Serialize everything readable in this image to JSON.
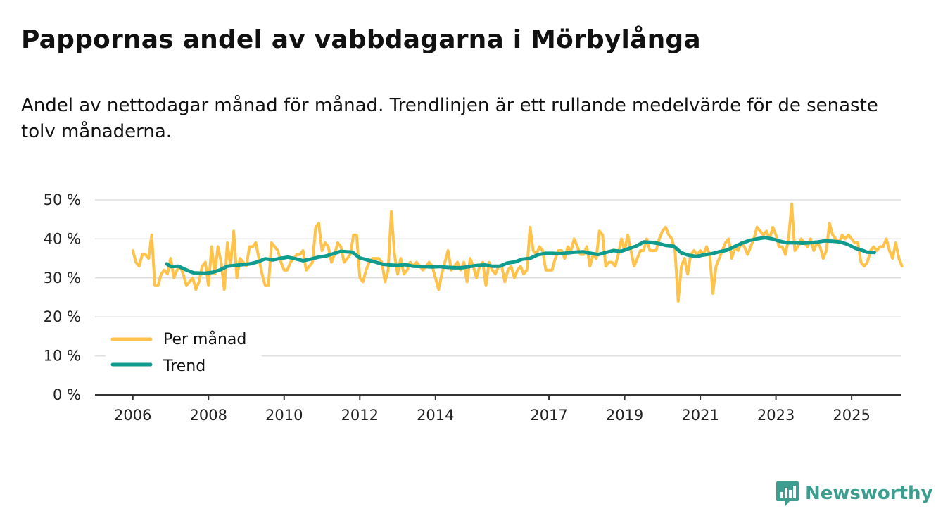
{
  "header": {
    "title": "Pappornas andel av vabbdagarna i Mörbylånga",
    "subtitle": "Andel av nettodagar månad för månad. Trendlinjen är ett rullande medelvärde för de senaste tolv månaderna."
  },
  "brand": {
    "name": "Newsworthy",
    "icon": "newsworthy-logo-icon"
  },
  "colors": {
    "monthly": "#ffc24a",
    "trend": "#0f9b8e",
    "grid": "#dddddd",
    "axis": "#333333"
  },
  "chart_data": {
    "type": "line",
    "title": "Pappornas andel av vabbdagarna i Mörbylånga",
    "xlabel": "",
    "ylabel": "",
    "unit": "%",
    "ylim": [
      0,
      50
    ],
    "yticks": [
      0,
      10,
      20,
      30,
      40,
      50
    ],
    "ytick_labels": [
      "0 %",
      "10 %",
      "20 %",
      "30 %",
      "40 %",
      "50 %"
    ],
    "xticks": [
      2006,
      2008,
      2010,
      2012,
      2014,
      2017,
      2019,
      2021,
      2023,
      2025
    ],
    "xtick_labels": [
      "2006",
      "2008",
      "2010",
      "2012",
      "2014",
      "2017",
      "2019",
      "2021",
      "2023",
      "2025"
    ],
    "xlim": [
      2005.0,
      2026.3
    ],
    "legend": {
      "placement": "bottom-left",
      "entries": [
        "Per månad",
        "Trend"
      ]
    },
    "series": [
      {
        "name": "Per månad",
        "x_start": 2006.0,
        "step": 0.08333,
        "values": [
          37,
          34,
          33,
          36,
          36,
          35,
          41,
          28,
          28,
          31,
          32,
          31,
          35,
          30,
          32,
          33,
          31,
          28,
          29,
          30,
          27,
          29,
          33,
          34,
          28,
          38,
          31,
          38,
          34,
          27,
          39,
          33,
          42,
          30,
          35,
          34,
          33,
          38,
          38,
          39,
          35,
          31,
          28,
          28,
          39,
          38,
          37,
          34,
          32,
          32,
          34,
          35,
          36,
          36,
          37,
          32,
          33,
          34,
          43,
          44,
          37,
          39,
          38,
          34,
          36,
          39,
          38,
          34,
          35,
          36,
          41,
          41,
          30,
          29,
          32,
          34,
          35,
          35,
          35,
          34,
          29,
          32,
          47,
          36,
          31,
          35,
          31,
          32,
          34,
          33,
          34,
          33,
          32,
          33,
          34,
          33,
          30,
          27,
          31,
          34,
          37,
          32,
          33,
          34,
          32,
          34,
          29,
          35,
          33,
          30,
          33,
          34,
          28,
          34,
          32,
          31,
          33,
          33,
          29,
          32,
          33,
          30,
          32,
          33,
          31,
          32,
          43,
          37,
          36,
          38,
          37,
          32,
          32,
          32,
          35,
          37,
          37,
          35,
          38,
          37,
          40,
          38,
          36,
          36,
          38,
          33,
          36,
          35,
          42,
          41,
          33,
          34,
          34,
          33,
          36,
          40,
          37,
          41,
          37,
          33,
          35,
          37,
          37,
          40,
          37,
          37,
          37,
          40,
          42,
          43,
          41,
          40,
          37,
          24,
          33,
          35,
          31,
          36,
          37,
          36,
          37,
          36,
          38,
          36,
          26,
          33,
          35,
          37,
          39,
          40,
          35,
          38,
          37,
          39,
          38,
          36,
          38,
          40,
          43,
          42,
          41,
          42,
          40,
          43,
          41,
          38,
          38,
          36,
          40,
          49,
          37,
          38,
          40,
          39,
          38,
          40,
          37,
          39,
          38,
          35,
          37,
          44,
          41,
          40,
          39,
          41,
          40,
          41,
          40,
          39,
          39,
          34,
          33,
          34,
          37,
          38,
          37,
          38,
          38,
          40,
          37,
          35,
          39,
          35,
          33
        ]
      },
      {
        "name": "Trend",
        "points": [
          [
            2006.9,
            33.6
          ],
          [
            2007.0,
            32.9
          ],
          [
            2007.2,
            33.0
          ],
          [
            2007.4,
            32.1
          ],
          [
            2007.6,
            31.3
          ],
          [
            2007.9,
            31.2
          ],
          [
            2008.1,
            31.4
          ],
          [
            2008.3,
            32.0
          ],
          [
            2008.5,
            33.0
          ],
          [
            2008.7,
            33.2
          ],
          [
            2008.9,
            33.4
          ],
          [
            2009.1,
            33.6
          ],
          [
            2009.3,
            34.1
          ],
          [
            2009.5,
            34.9
          ],
          [
            2009.7,
            34.6
          ],
          [
            2009.9,
            35.0
          ],
          [
            2010.1,
            35.3
          ],
          [
            2010.3,
            34.9
          ],
          [
            2010.5,
            34.4
          ],
          [
            2010.7,
            34.8
          ],
          [
            2010.9,
            35.3
          ],
          [
            2011.1,
            35.6
          ],
          [
            2011.3,
            36.2
          ],
          [
            2011.5,
            36.8
          ],
          [
            2011.8,
            36.6
          ],
          [
            2012.0,
            35.1
          ],
          [
            2012.2,
            34.6
          ],
          [
            2012.4,
            34.1
          ],
          [
            2012.6,
            33.5
          ],
          [
            2012.8,
            33.3
          ],
          [
            2013.0,
            33.2
          ],
          [
            2013.2,
            33.4
          ],
          [
            2013.4,
            33.0
          ],
          [
            2013.7,
            32.9
          ],
          [
            2013.9,
            32.8
          ],
          [
            2014.1,
            32.9
          ],
          [
            2014.3,
            32.7
          ],
          [
            2014.5,
            32.6
          ],
          [
            2014.7,
            32.6
          ],
          [
            2014.9,
            32.9
          ],
          [
            2015.1,
            33.2
          ],
          [
            2015.3,
            33.3
          ],
          [
            2015.5,
            33.0
          ],
          [
            2015.7,
            33.0
          ],
          [
            2015.9,
            33.8
          ],
          [
            2016.1,
            34.1
          ],
          [
            2016.3,
            34.8
          ],
          [
            2016.5,
            35.0
          ],
          [
            2016.7,
            35.9
          ],
          [
            2016.9,
            36.3
          ],
          [
            2017.1,
            36.3
          ],
          [
            2017.3,
            36.2
          ],
          [
            2017.5,
            36.4
          ],
          [
            2017.7,
            36.6
          ],
          [
            2017.9,
            36.7
          ],
          [
            2018.1,
            36.3
          ],
          [
            2018.3,
            36.0
          ],
          [
            2018.5,
            36.5
          ],
          [
            2018.7,
            37.0
          ],
          [
            2018.9,
            36.8
          ],
          [
            2019.1,
            37.5
          ],
          [
            2019.3,
            38.1
          ],
          [
            2019.5,
            39.2
          ],
          [
            2019.7,
            39.1
          ],
          [
            2019.9,
            38.8
          ],
          [
            2020.1,
            38.3
          ],
          [
            2020.3,
            38.1
          ],
          [
            2020.5,
            36.4
          ],
          [
            2020.7,
            35.8
          ],
          [
            2020.9,
            35.5
          ],
          [
            2021.1,
            35.9
          ],
          [
            2021.3,
            36.2
          ],
          [
            2021.5,
            36.7
          ],
          [
            2021.7,
            37.1
          ],
          [
            2021.9,
            38.0
          ],
          [
            2022.1,
            38.9
          ],
          [
            2022.3,
            39.6
          ],
          [
            2022.5,
            40.0
          ],
          [
            2022.7,
            40.3
          ],
          [
            2022.9,
            40.0
          ],
          [
            2023.1,
            39.4
          ],
          [
            2023.3,
            39.0
          ],
          [
            2023.5,
            39.0
          ],
          [
            2023.7,
            38.9
          ],
          [
            2023.9,
            39.0
          ],
          [
            2024.1,
            39.2
          ],
          [
            2024.3,
            39.5
          ],
          [
            2024.5,
            39.4
          ],
          [
            2024.7,
            39.2
          ],
          [
            2024.9,
            38.6
          ],
          [
            2025.1,
            37.6
          ],
          [
            2025.3,
            37.0
          ],
          [
            2025.4,
            36.6
          ],
          [
            2025.6,
            36.5
          ]
        ]
      }
    ]
  }
}
